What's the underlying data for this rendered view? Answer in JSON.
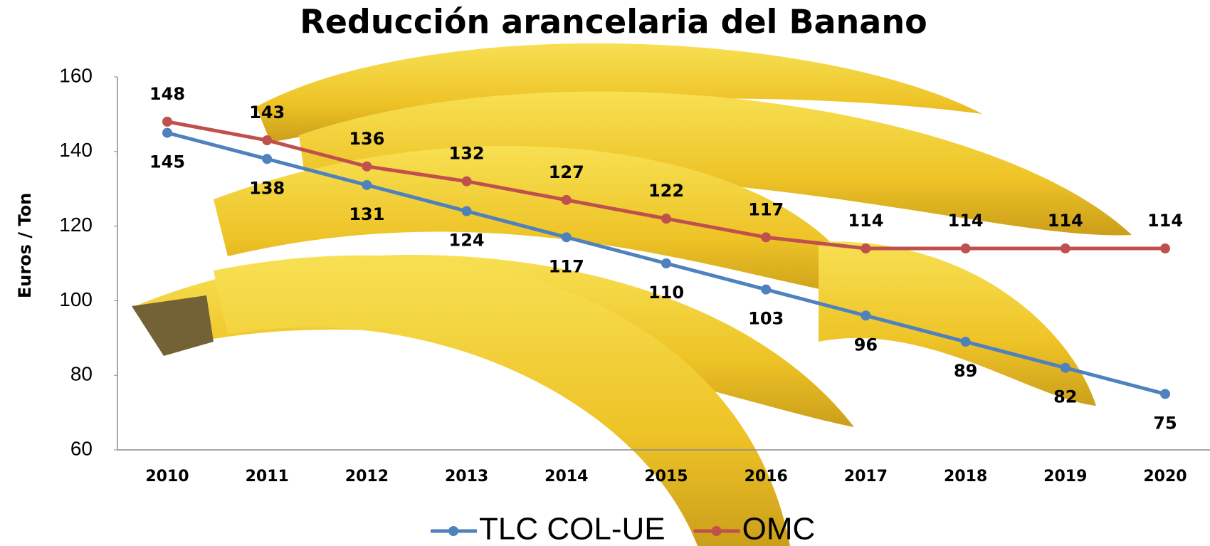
{
  "chart_data": {
    "type": "line",
    "title": "Reducción arancelaria del Banano",
    "y_label": "Euros / Ton",
    "categories": [
      "2010",
      "2011",
      "2012",
      "2013",
      "2014",
      "2015",
      "2016",
      "2017",
      "2018",
      "2019",
      "2020"
    ],
    "series": [
      {
        "name": "TLC COL-UE",
        "color": "#4f81bd",
        "values": [
          145,
          138,
          131,
          124,
          117,
          110,
          103,
          96,
          89,
          82,
          75
        ]
      },
      {
        "name": "OMC",
        "color": "#c0504d",
        "values": [
          148,
          143,
          136,
          132,
          127,
          122,
          117,
          114,
          114,
          114,
          114
        ]
      }
    ],
    "ylim": [
      60,
      160
    ],
    "yticks": [
      60,
      80,
      100,
      120,
      140,
      160
    ],
    "legend": "bottom"
  }
}
